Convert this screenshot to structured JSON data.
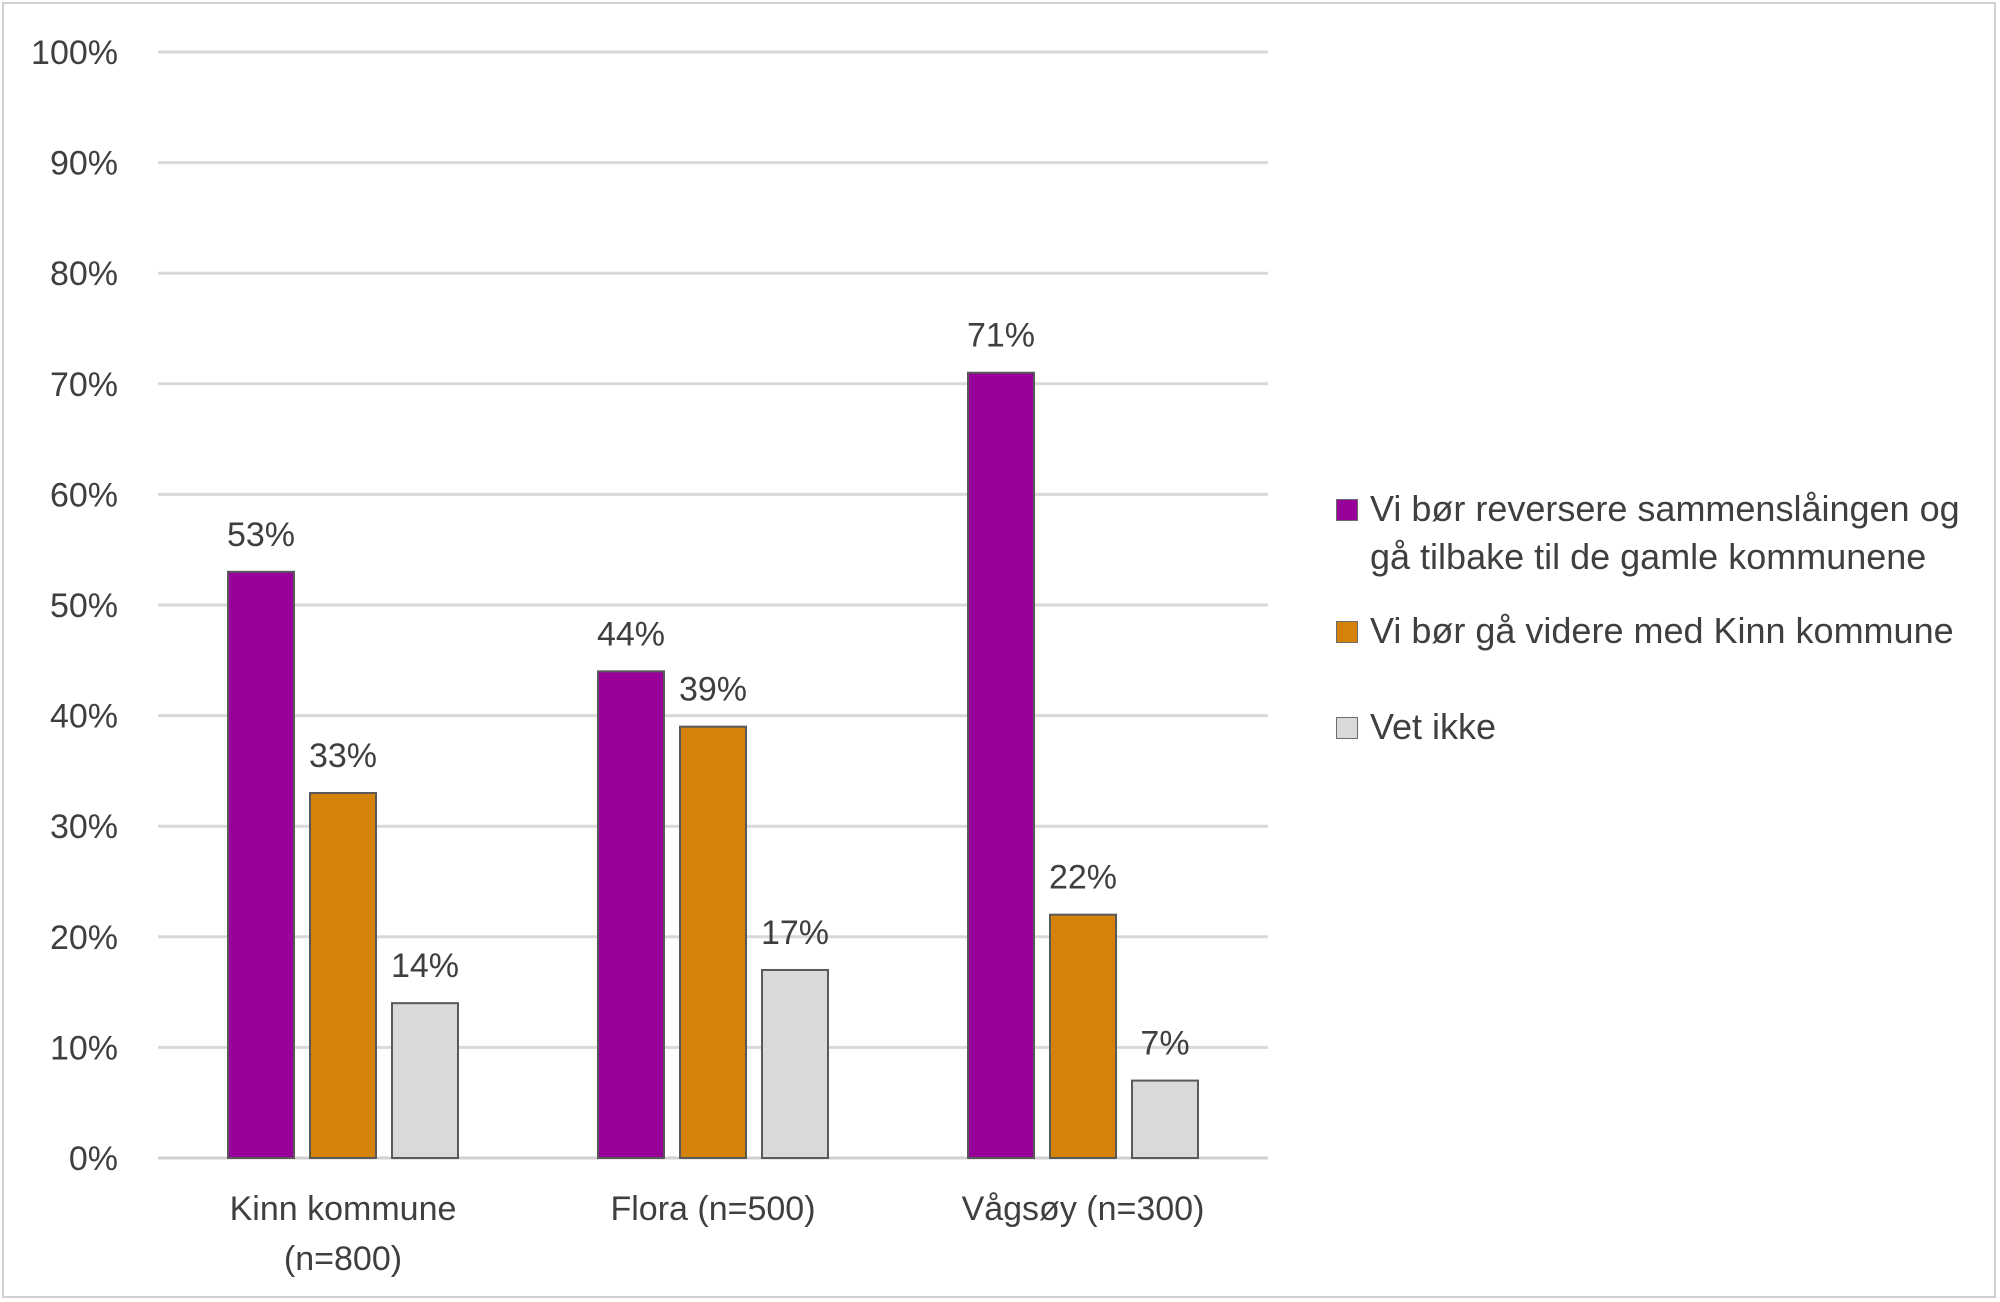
{
  "chart_data": {
    "type": "bar",
    "categories": [
      [
        "Kinn kommune",
        "(n=800)"
      ],
      [
        "Flora (n=500)"
      ],
      [
        "Vågsøy (n=300)"
      ]
    ],
    "series": [
      {
        "name": "Vi bør reversere sammenslåingen og gå tilbake til de gamle kommunene",
        "values": [
          53,
          44,
          71
        ],
        "labels": [
          "53%",
          "44%",
          "71%"
        ],
        "color": "#990099"
      },
      {
        "name": "Vi bør gå videre med Kinn kommune",
        "values": [
          33,
          39,
          22
        ],
        "labels": [
          "33%",
          "39%",
          "22%"
        ],
        "color": "#d4820a"
      },
      {
        "name": "Vet ikke",
        "values": [
          14,
          17,
          7
        ],
        "labels": [
          "14%",
          "17%",
          "7%"
        ],
        "color": "#d9d9d9"
      }
    ],
    "ylim": [
      0,
      100
    ],
    "yticks": [
      "0%",
      "10%",
      "20%",
      "30%",
      "40%",
      "50%",
      "60%",
      "70%",
      "80%",
      "90%",
      "100%"
    ],
    "grid": true,
    "legend_position": "right"
  },
  "legend": {
    "items": [
      {
        "lines": [
          "Vi bør reversere sammenslåingen og",
          "gå tilbake til de gamle kommunene"
        ],
        "color": "#990099"
      },
      {
        "lines": [
          "Vi bør gå videre med Kinn kommune"
        ],
        "color": "#d4820a"
      },
      {
        "lines": [
          "Vet ikke"
        ],
        "color": "#d9d9d9"
      }
    ]
  }
}
